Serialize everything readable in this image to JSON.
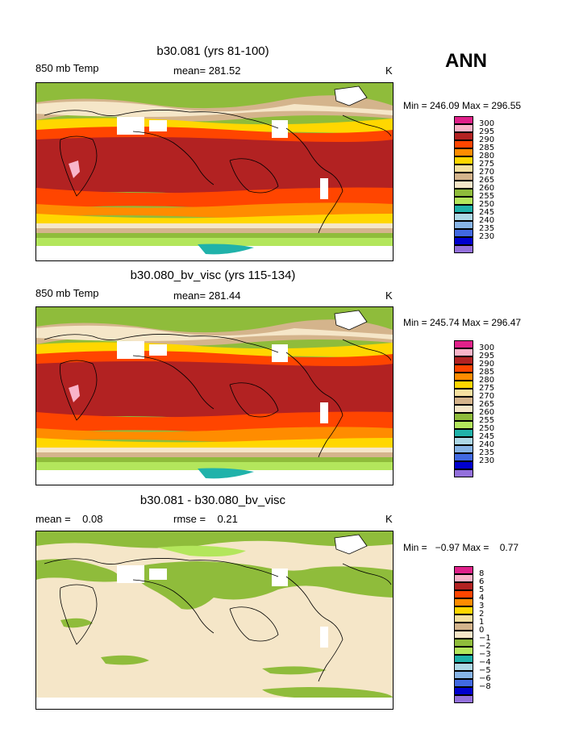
{
  "season": "ANN",
  "palette": [
    "#e0218a",
    "#f9b4c9",
    "#b22222",
    "#ff4500",
    "#ff8c00",
    "#ffd700",
    "#f5e0a0",
    "#d4b48c",
    "#f5e6c8",
    "#8fbc3b",
    "#b3e65c",
    "#20b2aa",
    "#add8e6",
    "#87b4e6",
    "#4169e1",
    "#0000cd",
    "#9370db"
  ],
  "panels": [
    {
      "title": "b30.081 (yrs 81-100)",
      "left_label": "850 mb Temp",
      "center_label": "mean= 281.52",
      "right_label": "K",
      "minmax": "Min = 246.09 Max = 296.55",
      "levels": [
        "300",
        "295",
        "290",
        "285",
        "280",
        "275",
        "270",
        "265",
        "260",
        "255",
        "250",
        "245",
        "240",
        "235",
        "230"
      ]
    },
    {
      "title": "b30.080_bv_visc (yrs 115-134)",
      "left_label": "850 mb Temp",
      "center_label": "mean= 281.44",
      "right_label": "K",
      "minmax": "Min = 245.74 Max = 296.47",
      "levels": [
        "300",
        "295",
        "290",
        "285",
        "280",
        "275",
        "270",
        "265",
        "260",
        "255",
        "250",
        "245",
        "240",
        "235",
        "230"
      ]
    },
    {
      "title": "b30.081 - b30.080_bv_visc",
      "left_label": "mean =    0.08",
      "center_label": "rmse =    0.21",
      "right_label": "K",
      "minmax": "Min =   −0.97 Max =    0.77",
      "levels": [
        "8",
        "6",
        "5",
        "4",
        "3",
        "2",
        "1",
        "0",
        "−1",
        "−2",
        "−3",
        "−4",
        "−5",
        "−6",
        "−8"
      ]
    }
  ]
}
